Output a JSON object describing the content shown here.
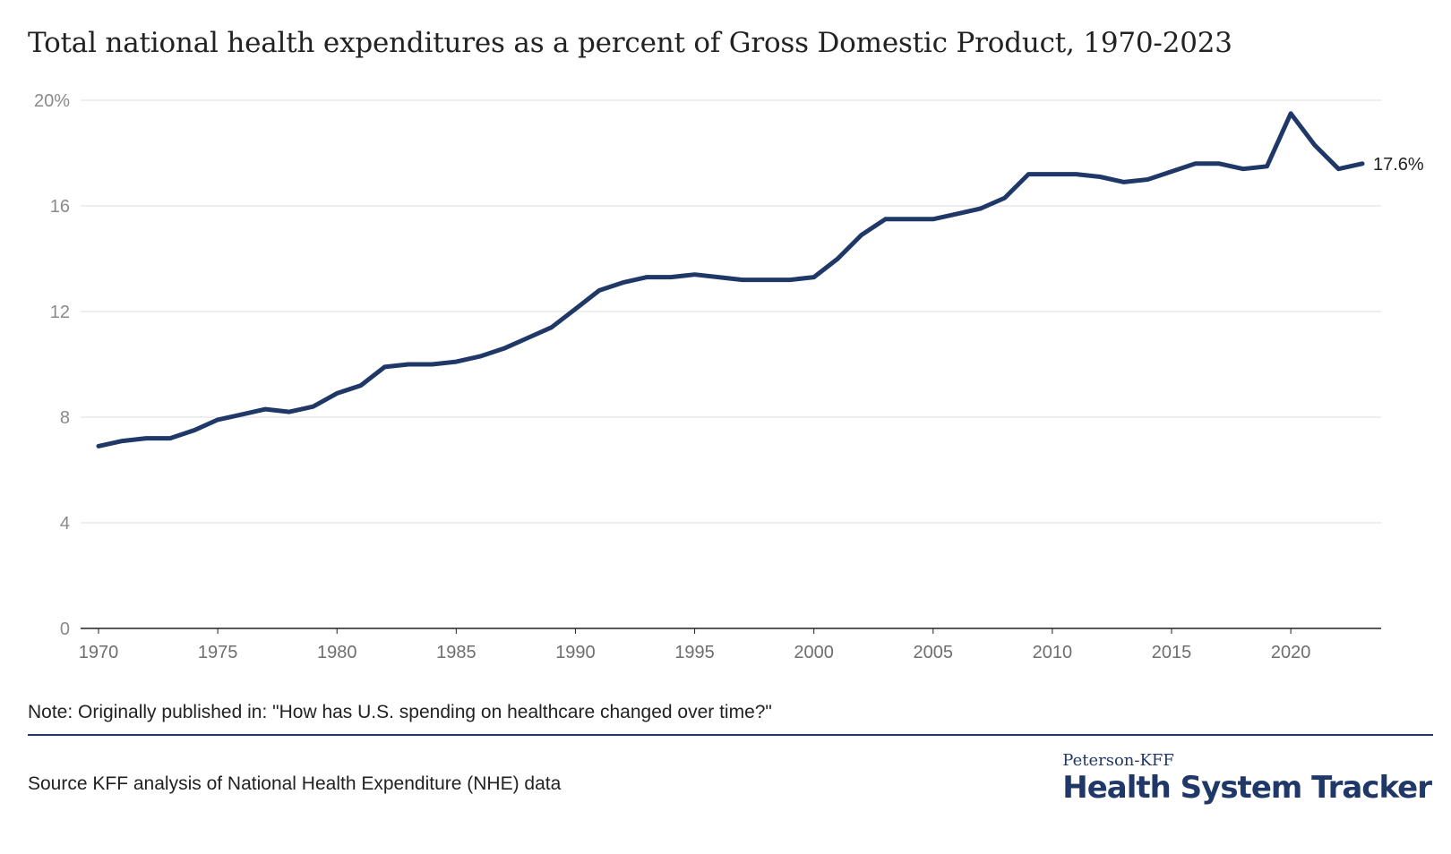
{
  "header": {
    "title": "Total national health expenditures as a percent of Gross Domestic Product, 1970-2023"
  },
  "chart_data": {
    "type": "line",
    "title": "Total national health expenditures as a percent of Gross Domestic Product, 1970-2023",
    "xlabel": "",
    "ylabel": "",
    "xlim": [
      1970,
      2023
    ],
    "ylim": [
      0,
      20
    ],
    "x_ticks": [
      1970,
      1975,
      1980,
      1985,
      1990,
      1995,
      2000,
      2005,
      2010,
      2015,
      2020
    ],
    "y_ticks": [
      {
        "value": 0,
        "label": "0"
      },
      {
        "value": 4,
        "label": "4"
      },
      {
        "value": 8,
        "label": "8"
      },
      {
        "value": 12,
        "label": "12"
      },
      {
        "value": 16,
        "label": "16"
      },
      {
        "value": 20,
        "label": "20%"
      }
    ],
    "grid": true,
    "series": [
      {
        "color": "#1f3868",
        "end_label": "17.6%",
        "x": [
          1970,
          1971,
          1972,
          1973,
          1974,
          1975,
          1976,
          1977,
          1978,
          1979,
          1980,
          1981,
          1982,
          1983,
          1984,
          1985,
          1986,
          1987,
          1988,
          1989,
          1990,
          1991,
          1992,
          1993,
          1994,
          1995,
          1996,
          1997,
          1998,
          1999,
          2000,
          2001,
          2002,
          2003,
          2004,
          2005,
          2006,
          2007,
          2008,
          2009,
          2010,
          2011,
          2012,
          2013,
          2014,
          2015,
          2016,
          2017,
          2018,
          2019,
          2020,
          2021,
          2022,
          2023
        ],
        "values": [
          6.9,
          7.1,
          7.2,
          7.2,
          7.5,
          7.9,
          8.1,
          8.3,
          8.2,
          8.4,
          8.9,
          9.2,
          9.9,
          10.0,
          10.0,
          10.1,
          10.3,
          10.6,
          11.0,
          11.4,
          12.1,
          12.8,
          13.1,
          13.3,
          13.3,
          13.4,
          13.3,
          13.2,
          13.2,
          13.2,
          13.3,
          14.0,
          14.9,
          15.5,
          15.5,
          15.5,
          15.7,
          15.9,
          16.3,
          17.2,
          17.2,
          17.2,
          17.1,
          16.9,
          17.0,
          17.3,
          17.6,
          17.6,
          17.4,
          17.5,
          19.5,
          18.3,
          17.4,
          17.6
        ]
      }
    ]
  },
  "footer": {
    "note": "Note: Originally published in: \"How has U.S. spending on healthcare changed over time?\"",
    "source": "Source KFF analysis of National Health Expenditure (NHE) data",
    "brand_top": "Peterson-KFF",
    "brand_main": "Health System Tracker"
  }
}
